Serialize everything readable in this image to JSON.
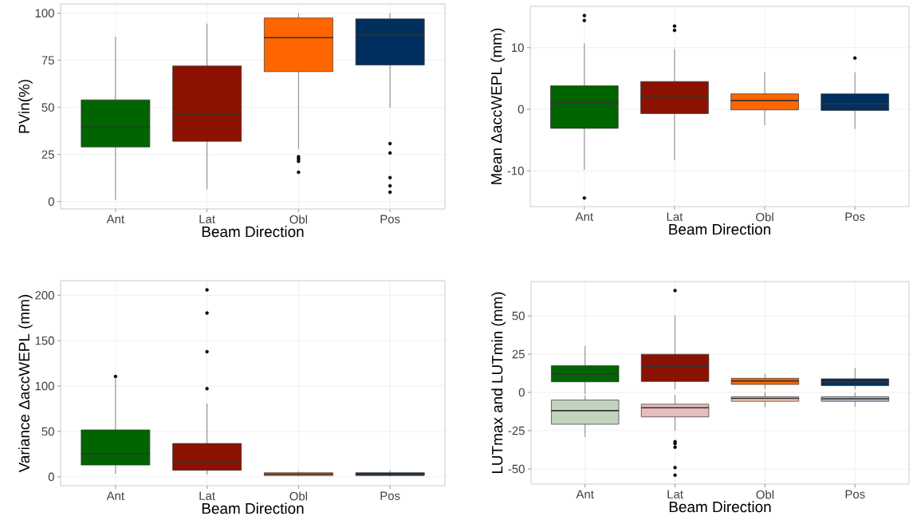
{
  "chart_data": [
    {
      "type": "box",
      "xlabel": "Beam Direction",
      "ylabel": "PVin(%)",
      "categories": [
        "Ant",
        "Lat",
        "Obl",
        "Pos"
      ],
      "ylim": [
        -3.9,
        104.9
      ],
      "yticks": [
        0,
        25,
        50,
        75,
        100
      ],
      "grid": true,
      "series": [
        {
          "colors": [
            "#006400",
            "#8b1200",
            "#ff6600",
            "#002f5f"
          ],
          "boxes": [
            {
              "low": 1,
              "q1": 29,
              "median": 39.5,
              "q3": 54,
              "high": 87.5
            },
            {
              "low": 6.5,
              "q1": 32,
              "median": 46.5,
              "q3": 72,
              "high": 94.5
            },
            {
              "low": 28,
              "q1": 69,
              "median": 87,
              "q3": 97.5,
              "high": 100,
              "outliers": [
                23.8,
                22.7,
                21.4,
                15.6
              ]
            },
            {
              "low": 50,
              "q1": 72.5,
              "median": 88.5,
              "q3": 97,
              "high": 100,
              "outliers": [
                30.8,
                25.8,
                12.7,
                8.4,
                5
              ]
            }
          ]
        }
      ]
    },
    {
      "type": "box",
      "xlabel": "Beam Direction",
      "ylabel": "Mean ΔaccWEPL (mm)",
      "categories": [
        "Ant",
        "Lat",
        "Obl",
        "Pos"
      ],
      "ylim": [
        -15.8,
        16.7
      ],
      "yticks": [
        -10,
        0,
        10
      ],
      "grid": true,
      "series": [
        {
          "colors": [
            "#006400",
            "#8b1200",
            "#ff6600",
            "#002f5f"
          ],
          "boxes": [
            {
              "low": -9.8,
              "q1": -3.1,
              "median": 1.1,
              "q3": 3.8,
              "high": 10.7,
              "outliers": [
                15.2,
                14.4,
                -14.4
              ]
            },
            {
              "low": -8.3,
              "q1": -0.7,
              "median": 2,
              "q3": 4.5,
              "high": 9.8,
              "outliers": [
                13.5,
                12.8
              ]
            },
            {
              "low": -2.6,
              "q1": -0.1,
              "median": 1.4,
              "q3": 2.5,
              "high": 6
            },
            {
              "low": -3.2,
              "q1": -0.2,
              "median": 0.9,
              "q3": 2.5,
              "high": 6,
              "outliers": [
                8.3
              ]
            }
          ]
        }
      ]
    },
    {
      "type": "box",
      "xlabel": "Beam Direction",
      "ylabel": "Variance ΔaccWEPL (mm)",
      "categories": [
        "Ant",
        "Lat",
        "Obl",
        "Pos"
      ],
      "ylim": [
        -9.8,
        216
      ],
      "yticks": [
        0,
        50,
        100,
        150,
        200
      ],
      "grid": true,
      "series": [
        {
          "colors": [
            "#006400",
            "#8b1200",
            "#ff6600",
            "#002f5f"
          ],
          "boxes": [
            {
              "low": 3.3,
              "q1": 13,
              "median": 25.4,
              "q3": 51.7,
              "high": 108,
              "outliers": [
                110.5
              ]
            },
            {
              "low": 2.6,
              "q1": 7.2,
              "median": 16.3,
              "q3": 36.7,
              "high": 80.7,
              "outliers": [
                206,
                180.5,
                137.9,
                97.2
              ]
            },
            {
              "low": 0.5,
              "q1": 1.5,
              "median": 3,
              "q3": 4.5,
              "high": 6
            },
            {
              "low": 0.5,
              "q1": 1.5,
              "median": 3,
              "q3": 4.5,
              "high": 7
            }
          ]
        }
      ]
    },
    {
      "type": "box",
      "xlabel": "Beam Direction",
      "ylabel": "LUTmax and LUTmin (mm)",
      "categories": [
        "Ant",
        "Lat",
        "Obl",
        "Pos"
      ],
      "ylim": [
        -59.9,
        72.4
      ],
      "yticks": [
        -50,
        -25,
        0,
        25,
        50
      ],
      "grid": true,
      "series": [
        {
          "colors": [
            "#006400",
            "#8b1200",
            "#ff6600",
            "#002f5f"
          ],
          "boxes": [
            {
              "low": -1,
              "q1": 6.9,
              "median": 12,
              "q3": 17.5,
              "high": 30.4
            },
            {
              "low": 2.1,
              "q1": 7.1,
              "median": 17.1,
              "q3": 24.9,
              "high": 50.3,
              "outliers": [
                66.5
              ]
            },
            {
              "low": 2.1,
              "q1": 5.2,
              "median": 7.5,
              "q3": 9.2,
              "high": 12.1
            },
            {
              "low": 2,
              "q1": 4.4,
              "median": 6.7,
              "q3": 8.9,
              "high": 16
            }
          ]
        },
        {
          "colors": [
            "#c2d4be",
            "#e6bcbc",
            "#f3c6a6",
            "#b3bfcc"
          ],
          "boxes": [
            {
              "low": -29.1,
              "q1": -20.8,
              "median": -11.9,
              "q3": -5,
              "high": -2
            },
            {
              "low": -24.9,
              "q1": -16,
              "median": -10,
              "q3": -7.7,
              "high": -1.7,
              "outliers": [
                -32.2,
                -33.5,
                -35.8,
                -49.1,
                -54.1
              ]
            },
            {
              "low": -9.6,
              "q1": -5.8,
              "median": -3.9,
              "q3": -2.9,
              "high": 0.2
            },
            {
              "low": -9.4,
              "q1": -5.8,
              "median": -4.2,
              "q3": -2.9,
              "high": -0.2
            }
          ]
        }
      ]
    }
  ]
}
